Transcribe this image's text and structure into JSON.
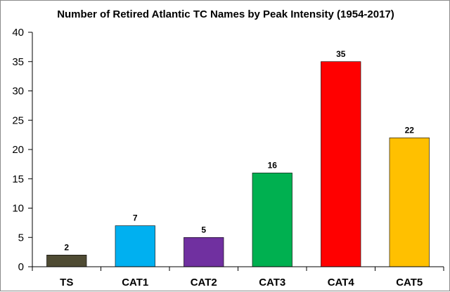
{
  "chart_data": {
    "type": "bar",
    "title": "Number of Retired Atlantic TC Names by Peak Intensity (1954-2017)",
    "xlabel": "",
    "ylabel": "",
    "categories": [
      "TS",
      "CAT1",
      "CAT2",
      "CAT3",
      "CAT4",
      "CAT5"
    ],
    "values": [
      2,
      7,
      5,
      16,
      35,
      22
    ],
    "data_labels": [
      "2",
      "7",
      "5",
      "16",
      "35",
      "22"
    ],
    "ylim": [
      0,
      40
    ],
    "yticks": [
      0,
      5,
      10,
      15,
      20,
      25,
      30,
      35,
      40
    ],
    "ytick_labels": [
      "0",
      "5",
      "10",
      "15",
      "20",
      "25",
      "30",
      "35",
      "40"
    ],
    "grid": false,
    "legend": "none",
    "colors": [
      "#4f4b33",
      "#00b0f0",
      "#7030a0",
      "#00b050",
      "#ff0000",
      "#ffc000"
    ]
  }
}
